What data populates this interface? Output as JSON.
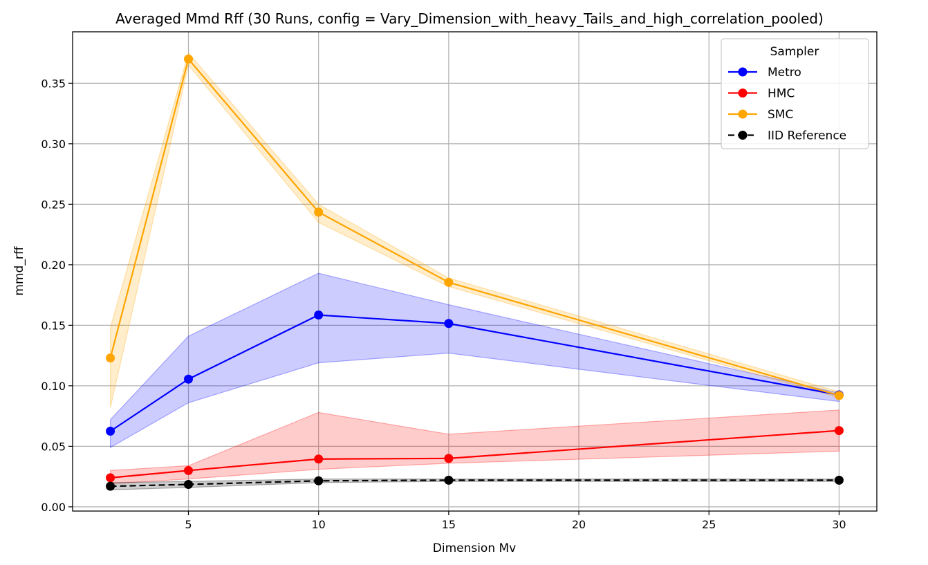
{
  "chart_data": {
    "type": "line",
    "title": "Averaged Mmd Rff (30 Runs, config = Vary_Dimension_with_heavy_Tails_and_high_correlation_pooled)",
    "xlabel": "Dimension Mv",
    "ylabel": "mmd_rff",
    "xlim": [
      0.55,
      31.45
    ],
    "ylim": [
      -0.0035,
      0.3925
    ],
    "xticks": [
      5,
      10,
      15,
      20,
      25,
      30
    ],
    "yticks": [
      0.0,
      0.05,
      0.1,
      0.15,
      0.2,
      0.25,
      0.3,
      0.35
    ],
    "ytick_labels": [
      "0.00",
      "0.05",
      "0.10",
      "0.15",
      "0.20",
      "0.25",
      "0.30",
      "0.35"
    ],
    "grid": true,
    "legend": {
      "title": "Sampler",
      "placement": "top-right"
    },
    "x": [
      2,
      5,
      10,
      15,
      30
    ],
    "series": [
      {
        "name": "Metro",
        "color": "#0000ff",
        "dashed": false,
        "values": [
          0.0625,
          0.1055,
          0.1585,
          0.1515,
          0.0925
        ],
        "lower": [
          0.049,
          0.086,
          0.119,
          0.127,
          0.087
        ],
        "upper": [
          0.072,
          0.141,
          0.193,
          0.167,
          0.094
        ]
      },
      {
        "name": "HMC",
        "color": "#ff0000",
        "dashed": false,
        "values": [
          0.024,
          0.03,
          0.0395,
          0.04,
          0.063
        ],
        "lower": [
          0.019,
          0.023,
          0.031,
          0.036,
          0.046
        ],
        "upper": [
          0.03,
          0.034,
          0.078,
          0.06,
          0.08
        ]
      },
      {
        "name": "SMC",
        "color": "#ffa500",
        "dashed": false,
        "values": [
          0.123,
          0.37,
          0.2435,
          0.1855,
          0.092
        ],
        "lower": [
          0.082,
          0.365,
          0.235,
          0.182,
          0.09
        ],
        "upper": [
          0.148,
          0.375,
          0.25,
          0.189,
          0.095
        ]
      },
      {
        "name": "IID Reference",
        "color": "#000000",
        "dashed": true,
        "values": [
          0.017,
          0.0185,
          0.0215,
          0.022,
          0.022
        ],
        "lower": [
          0.014,
          0.016,
          0.02,
          0.021,
          0.021
        ],
        "upper": [
          0.02,
          0.021,
          0.023,
          0.023,
          0.023
        ]
      }
    ]
  }
}
